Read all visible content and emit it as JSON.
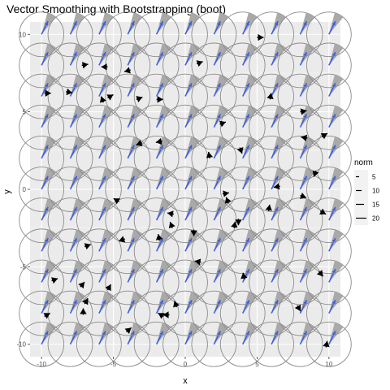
{
  "chart_data": {
    "type": "scatter",
    "title": "Vector Smoothing with Bootstrapping (boot)",
    "xlabel": "x",
    "ylabel": "y",
    "xlim": [
      -10.8,
      10.8
    ],
    "ylim": [
      -10.8,
      10.8
    ],
    "x_ticks": [
      -10,
      -5,
      0,
      5,
      10
    ],
    "y_ticks": [
      -10,
      -5,
      0,
      5,
      10
    ],
    "x_tick_labels": [
      "-10",
      "-5",
      "0",
      "5",
      "10"
    ],
    "y_tick_labels": [
      "-10",
      "-5",
      "0",
      "5",
      "10"
    ],
    "grid": true,
    "legend": {
      "title": "norm",
      "position": "right",
      "entries": [
        "5",
        "10",
        "15",
        "20"
      ]
    },
    "smoothed_grid": {
      "x": [
        -10,
        -8,
        -6,
        -4,
        -2,
        0,
        2,
        4,
        6,
        8,
        10
      ],
      "y": [
        -10,
        -8,
        -6,
        -4,
        -2,
        0,
        2,
        4,
        6,
        8,
        10
      ],
      "vector_dx": 0.45,
      "vector_dy": 0.85,
      "circle_radius": 1.55,
      "wedge_from_deg": 50,
      "wedge_to_deg": 75,
      "vector_color": "#3a5fe0",
      "wedge_color": "#a9a9a9",
      "circle_color": "#8c8c8c"
    },
    "raw_vectors": [
      {
        "x": -7.2,
        "y": 8.0,
        "angle": 10
      },
      {
        "x": -5.4,
        "y": 7.9,
        "angle": 180
      },
      {
        "x": -3.8,
        "y": 7.7,
        "angle": 195
      },
      {
        "x": 0.8,
        "y": 8.1,
        "angle": 20
      },
      {
        "x": 5.0,
        "y": 9.8,
        "angle": 0
      },
      {
        "x": -9.8,
        "y": 6.2,
        "angle": 0
      },
      {
        "x": -8.3,
        "y": 6.3,
        "angle": 350
      },
      {
        "x": -5.4,
        "y": 5.9,
        "angle": 30
      },
      {
        "x": -3.4,
        "y": 5.8,
        "angle": 20
      },
      {
        "x": -2.0,
        "y": 5.8,
        "angle": 0
      },
      {
        "x": 5.9,
        "y": 5.8,
        "angle": 80
      },
      {
        "x": 8.0,
        "y": 5.0,
        "angle": 10
      },
      {
        "x": -5.7,
        "y": 5.6,
        "angle": 110
      },
      {
        "x": 2.4,
        "y": 4.2,
        "angle": 20
      },
      {
        "x": -3.0,
        "y": 3.0,
        "angle": 200
      },
      {
        "x": -1.6,
        "y": 3.1,
        "angle": 190
      },
      {
        "x": 3.8,
        "y": 2.7,
        "angle": 290
      },
      {
        "x": 8.5,
        "y": 3.3,
        "angle": 170
      },
      {
        "x": 9.5,
        "y": 3.4,
        "angle": 30
      },
      {
        "x": 1.7,
        "y": 2.0,
        "angle": 100
      },
      {
        "x": 9.1,
        "y": 1.2,
        "angle": 250
      },
      {
        "x": 6.6,
        "y": 0.2,
        "angle": 190
      },
      {
        "x": 8.0,
        "y": -0.4,
        "angle": 340
      },
      {
        "x": 2.6,
        "y": -0.3,
        "angle": 10
      },
      {
        "x": 3.0,
        "y": -0.9,
        "angle": 110
      },
      {
        "x": 5.8,
        "y": -1.4,
        "angle": 80
      },
      {
        "x": 9.4,
        "y": -1.4,
        "angle": 330
      },
      {
        "x": -4.6,
        "y": -0.8,
        "angle": 150
      },
      {
        "x": -0.8,
        "y": -1.6,
        "angle": 170
      },
      {
        "x": 3.7,
        "y": -1.9,
        "angle": 270
      },
      {
        "x": 3.4,
        "y": -2.5,
        "angle": 80
      },
      {
        "x": -0.9,
        "y": -2.5,
        "angle": 110
      },
      {
        "x": 0.6,
        "y": -2.6,
        "angle": 270
      },
      {
        "x": -4.2,
        "y": -3.2,
        "angle": 200
      },
      {
        "x": -1.8,
        "y": -3.3,
        "angle": 100
      },
      {
        "x": -7.0,
        "y": -3.7,
        "angle": 20
      },
      {
        "x": 1.1,
        "y": -4.7,
        "angle": 170
      },
      {
        "x": 9.3,
        "y": -5.3,
        "angle": 310
      },
      {
        "x": -9.3,
        "y": -5.9,
        "angle": 20
      },
      {
        "x": 4.1,
        "y": -5.8,
        "angle": 100
      },
      {
        "x": -7.3,
        "y": -6.3,
        "angle": 50
      },
      {
        "x": -5.4,
        "y": -6.5,
        "angle": 60
      },
      {
        "x": -7.0,
        "y": -7.4,
        "angle": 60
      },
      {
        "x": -0.6,
        "y": -7.6,
        "angle": 110
      },
      {
        "x": -9.8,
        "y": -8.2,
        "angle": 30
      },
      {
        "x": -7.1,
        "y": -8.1,
        "angle": 90
      },
      {
        "x": -1.1,
        "y": -8.1,
        "angle": 180
      },
      {
        "x": -1.5,
        "y": -8.2,
        "angle": 150
      },
      {
        "x": 7.8,
        "y": -7.5,
        "angle": 300
      },
      {
        "x": -4.1,
        "y": -9.2,
        "angle": 40
      },
      {
        "x": 9.8,
        "y": -10.2,
        "angle": 80
      }
    ]
  }
}
